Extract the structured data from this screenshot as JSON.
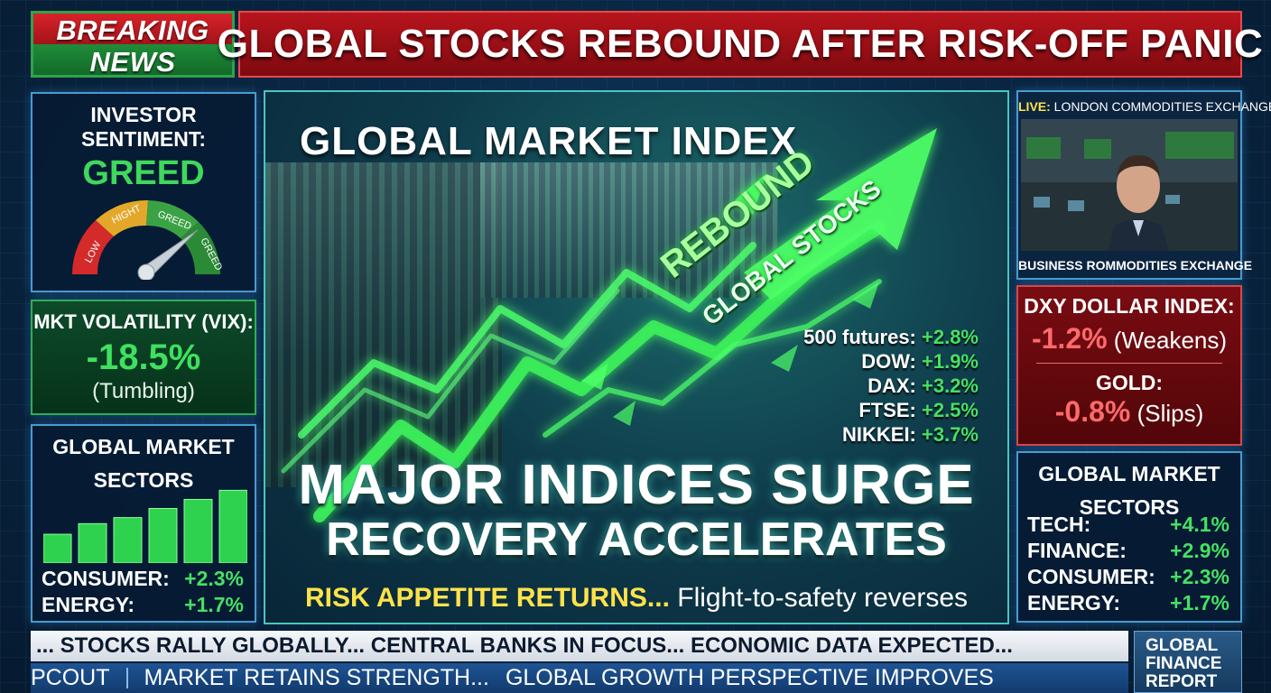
{
  "header": {
    "breaking_line1": "BREAKING",
    "breaking_line2": "NEWS",
    "headline": "GLOBAL STOCKS REBOUND AFTER RISK-OFF PANIC"
  },
  "sentiment": {
    "title": "INVESTOR SENTIMENT:",
    "value": "GREED",
    "gauge_labels": [
      "LOW",
      "HIGHT",
      "GREED",
      "GREED"
    ],
    "gauge_level": 0.78
  },
  "vix": {
    "title": "MKT VOLATILITY (VIX):",
    "value": "-18.5%",
    "note": "(Tumbling)"
  },
  "sectors_left": {
    "title_line1": "GLOBAL MARKET",
    "title_line2": "SECTORS",
    "bar_levels": [
      0.38,
      0.52,
      0.6,
      0.72,
      0.84,
      0.96
    ],
    "rows": [
      {
        "label": "CONSUMER:",
        "value": "+2.3%"
      },
      {
        "label": "ENERGY:",
        "value": "+1.7%"
      }
    ]
  },
  "center": {
    "title": "GLOBAL MARKET INDEX",
    "arrow_label_1": "REBOUND",
    "arrow_label_2": "GLOBAL STOCKS",
    "futures": [
      {
        "label": "500 futures:",
        "value": "+2.8%"
      },
      {
        "label": "DOW:",
        "value": "+1.9%"
      },
      {
        "label": "DAX:",
        "value": "+3.2%"
      },
      {
        "label": "FTSE:",
        "value": "+2.5%"
      },
      {
        "label": "NIKKEI:",
        "value": "+3.7%"
      }
    ],
    "surge_line1": "MAJOR INDICES SURGE",
    "surge_line2": "RECOVERY ACCELERATES",
    "risk_highlight": "RISK APPETITE RETURNS...",
    "risk_rest": "Flight-to-safety reverses"
  },
  "live": {
    "live_tag": "LIVE:",
    "caption": "LONDON COMMODITIES EXCHANGE",
    "bottom_caption": "BUSINESS ROMMODITIES EXCHANGE"
  },
  "dxy": {
    "title": "DXY DOLLAR INDEX:",
    "value": "-1.2%",
    "note": "(Weakens)",
    "gold_title": "GOLD:",
    "gold_value": "-0.8%",
    "gold_note": "(Slips)"
  },
  "sectors_right": {
    "title_line1": "GLOBAL MARKET",
    "title_line2": "SECTORS",
    "rows": [
      {
        "label": "TECH:",
        "value": "+4.1%"
      },
      {
        "label": "FINANCE:",
        "value": "+2.9%"
      },
      {
        "label": "CONSUMER:",
        "value": "+2.3%"
      },
      {
        "label": "ENERGY:",
        "value": "+1.7%"
      }
    ]
  },
  "ticker": {
    "line1": "... STOCKS RALLY GLOBALLY... CENTRAL BANKS IN FOCUS... ECONOMIC DATA EXPECTED...",
    "line2_a": "PCOUT",
    "line2_b": "MARKET RETAINS STRENGTH...",
    "line2_c": "GLOBAL GROWTH PERSPECTIVE IMPROVES"
  },
  "brand": {
    "line1": "GLOBAL",
    "line2": "FINANCE",
    "line3": "REPORT"
  },
  "colors": {
    "breaking_red": "#c41a22",
    "breaking_green": "#1f8c3a",
    "positive_green": "#46e064",
    "negative_red": "#ff6a6a",
    "highlight_yellow": "#ffe24a",
    "panel_border": "#4a9ad0"
  }
}
